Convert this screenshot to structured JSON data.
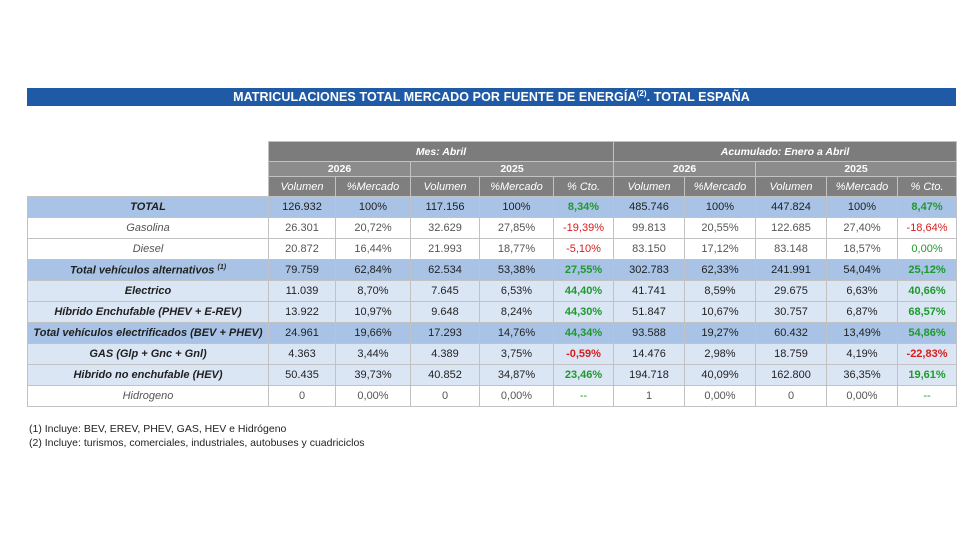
{
  "title": {
    "main": "MATRICULACIONES TOTAL MERCADO POR FUENTE DE ENERGÍA",
    "sup": "(2)",
    "tail": ". TOTAL ESPAÑA"
  },
  "table": {
    "groups": [
      "Mes: Abril",
      "Acumulado: Enero a Abril"
    ],
    "years": [
      "2026",
      "2025",
      "2026",
      "2025"
    ],
    "columns": [
      "Volumen",
      "%Mercado",
      "Volumen",
      "%Mercado",
      "% Cto.",
      "Volumen",
      "%Mercado",
      "Volumen",
      "%Mercado",
      "% Cto."
    ],
    "rows": [
      {
        "label": "TOTAL",
        "cells": [
          "126.932",
          "100%",
          "117.156",
          "100%",
          "8,34%",
          "485.746",
          "100%",
          "447.824",
          "100%",
          "8,47%"
        ]
      },
      {
        "label": "Gasolina",
        "cells": [
          "26.301",
          "20,72%",
          "32.629",
          "27,85%",
          "-19,39%",
          "99.813",
          "20,55%",
          "122.685",
          "27,40%",
          "-18,64%"
        ]
      },
      {
        "label": "Diesel",
        "cells": [
          "20.872",
          "16,44%",
          "21.993",
          "18,77%",
          "-5,10%",
          "83.150",
          "17,12%",
          "83.148",
          "18,57%",
          "0,00%"
        ]
      },
      {
        "label": "Total vehículos alternativos",
        "sup": "(1)",
        "cells": [
          "79.759",
          "62,84%",
          "62.534",
          "53,38%",
          "27,55%",
          "302.783",
          "62,33%",
          "241.991",
          "54,04%",
          "25,12%"
        ]
      },
      {
        "label": "Electrico",
        "cells": [
          "11.039",
          "8,70%",
          "7.645",
          "6,53%",
          "44,40%",
          "41.741",
          "8,59%",
          "29.675",
          "6,63%",
          "40,66%"
        ]
      },
      {
        "label": "Híbrido Enchufable (PHEV + E-REV)",
        "cells": [
          "13.922",
          "10,97%",
          "9.648",
          "8,24%",
          "44,30%",
          "51.847",
          "10,67%",
          "30.757",
          "6,87%",
          "68,57%"
        ]
      },
      {
        "label": "Total vehículos electrificados (BEV + PHEV)",
        "cells": [
          "24.961",
          "19,66%",
          "17.293",
          "14,76%",
          "44,34%",
          "93.588",
          "19,27%",
          "60.432",
          "13,49%",
          "54,86%"
        ]
      },
      {
        "label": "GAS (Glp + Gnc + Gnl)",
        "cells": [
          "4.363",
          "3,44%",
          "4.389",
          "3,75%",
          "-0,59%",
          "14.476",
          "2,98%",
          "18.759",
          "4,19%",
          "-22,83%"
        ]
      },
      {
        "label": "Hibrido no enchufable (HEV)",
        "cells": [
          "50.435",
          "39,73%",
          "40.852",
          "34,87%",
          "23,46%",
          "194.718",
          "40,09%",
          "162.800",
          "36,35%",
          "19,61%"
        ]
      },
      {
        "label": "Hidrogeno",
        "cells": [
          "0",
          "0,00%",
          "0",
          "0,00%",
          "--",
          "1",
          "0,00%",
          "0",
          "0,00%",
          "--"
        ]
      }
    ]
  },
  "footnotes": [
    "(1) Incluye: BEV, EREV, PHEV, GAS, HEV e Hidrógeno",
    "(2) Incluye: turismos, comerciales, industriales, autobuses y cuadriciclos"
  ],
  "colors": {
    "title_bar": "#1f5aa6",
    "header_gray": "#7f7f7f",
    "row_dark_blue": "#a9c3e6",
    "row_light_blue": "#dbe6f5",
    "positive": "#1e9a2c",
    "negative": "#d81d1d"
  }
}
